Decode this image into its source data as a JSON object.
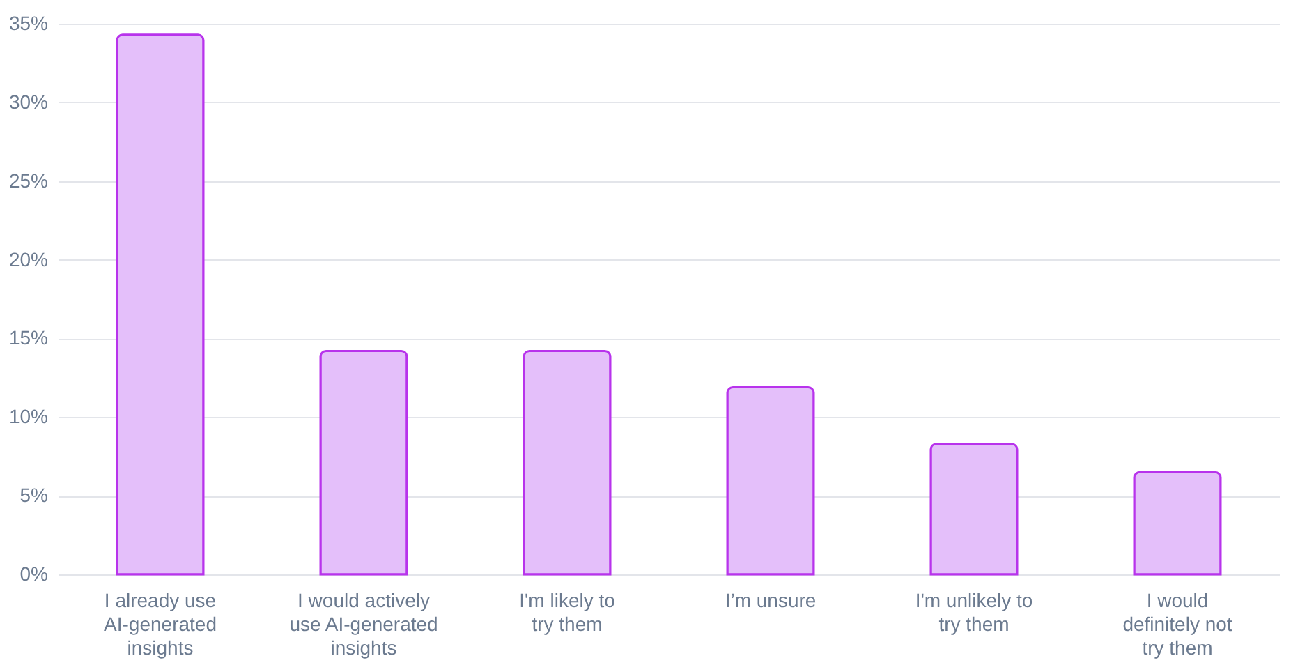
{
  "chart_data": {
    "type": "bar",
    "categories": [
      "I already use AI-generated insights",
      "I would actively use AI-generated insights",
      "I'm likely to try them",
      "I’m unsure",
      "I'm unlikely to try them",
      "I would definitely not try them"
    ],
    "values": [
      34.3,
      14.2,
      14.2,
      11.9,
      8.3,
      6.5
    ],
    "color": "#e4bffa",
    "ylim": [
      0,
      35
    ],
    "yticks": [
      {
        "value": 0,
        "label": "0%"
      },
      {
        "value": 5,
        "label": "5%"
      },
      {
        "value": 10,
        "label": "10%"
      },
      {
        "value": 15,
        "label": "15%"
      },
      {
        "value": 20,
        "label": "20%"
      },
      {
        "value": 25,
        "label": "25%"
      },
      {
        "value": 30,
        "label": "30%"
      },
      {
        "value": 35,
        "label": "35%"
      }
    ],
    "grid": "y"
  }
}
